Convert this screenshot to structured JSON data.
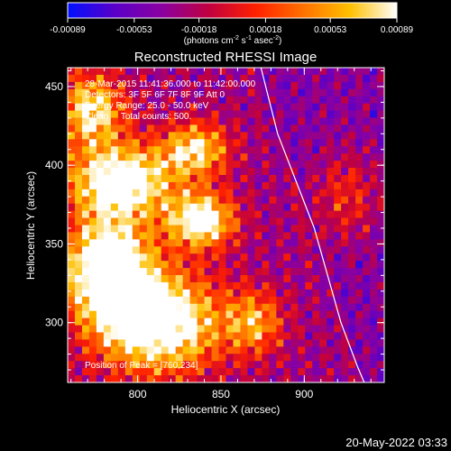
{
  "chart_data": {
    "type": "heatmap",
    "title": "Reconstructed RHESSI Image",
    "xlabel": "Heliocentric X (arcsec)",
    "ylabel": "Heliocentric Y (arcsec)",
    "xlim": [
      758,
      948
    ],
    "ylim": [
      262,
      462
    ],
    "xticks": [
      "800",
      "850",
      "900"
    ],
    "xtick_values": [
      800,
      850,
      900
    ],
    "yticks": [
      "300",
      "350",
      "400",
      "450"
    ],
    "ytick_values": [
      300,
      350,
      400,
      450
    ],
    "colorbar": {
      "range": [
        -0.00089,
        0.00089
      ],
      "tick_labels": [
        "-0.00089",
        "-0.00053",
        "-0.00018",
        "0.00018",
        "0.00053",
        "0.00089"
      ],
      "tick_values": [
        -0.00089,
        -0.00053,
        -0.00018,
        0.00018,
        0.00053,
        0.00089
      ],
      "unit_label": "(photons cm",
      "unit_label_exp1": "-2",
      "unit_label_mid": " s",
      "unit_label_exp2": "-1",
      "unit_label_end": " asec",
      "unit_label_exp3": "-2",
      "unit_label_close": ")",
      "colors": [
        "#0010ff",
        "#5a00c8",
        "#8a00a0",
        "#c00040",
        "#ff2000",
        "#ff7000",
        "#ffc000",
        "#ffffff"
      ]
    },
    "annotations": [
      "28-Mar-2015 11:41:36.000 to 11:42:00.000",
      "Detectors: 3F 5F 6F 7F 8F 9F Att 0",
      "Energy Range: 25.0 - 50.0 keV",
      "Clean     Total counts: 500."
    ],
    "peak_label": "Position of Peak = [760,234]",
    "limb": [
      [
        874,
        462
      ],
      [
        884,
        420
      ],
      [
        895,
        390
      ],
      [
        906,
        360
      ],
      [
        914,
        330
      ],
      [
        922,
        300
      ],
      [
        932,
        272
      ],
      [
        936,
        262
      ]
    ],
    "limb_color": "#ffffff",
    "bright_regions": [
      {
        "x": 790,
        "y": 390,
        "sx": 22,
        "sy": 16,
        "amp": 0.85
      },
      {
        "x": 838,
        "y": 365,
        "sx": 14,
        "sy": 12,
        "amp": 0.8
      },
      {
        "x": 782,
        "y": 335,
        "sx": 18,
        "sy": 22,
        "amp": 0.95
      },
      {
        "x": 812,
        "y": 300,
        "sx": 26,
        "sy": 22,
        "amp": 0.9
      },
      {
        "x": 835,
        "y": 410,
        "sx": 14,
        "sy": 12,
        "amp": 0.6
      },
      {
        "x": 772,
        "y": 435,
        "sx": 14,
        "sy": 16,
        "amp": 0.65
      },
      {
        "x": 870,
        "y": 300,
        "sx": 12,
        "sy": 14,
        "amp": 0.45
      },
      {
        "x": 925,
        "y": 380,
        "sx": 14,
        "sy": 20,
        "amp": 0.35
      }
    ]
  },
  "timestamp": "20-May-2022 03:33"
}
